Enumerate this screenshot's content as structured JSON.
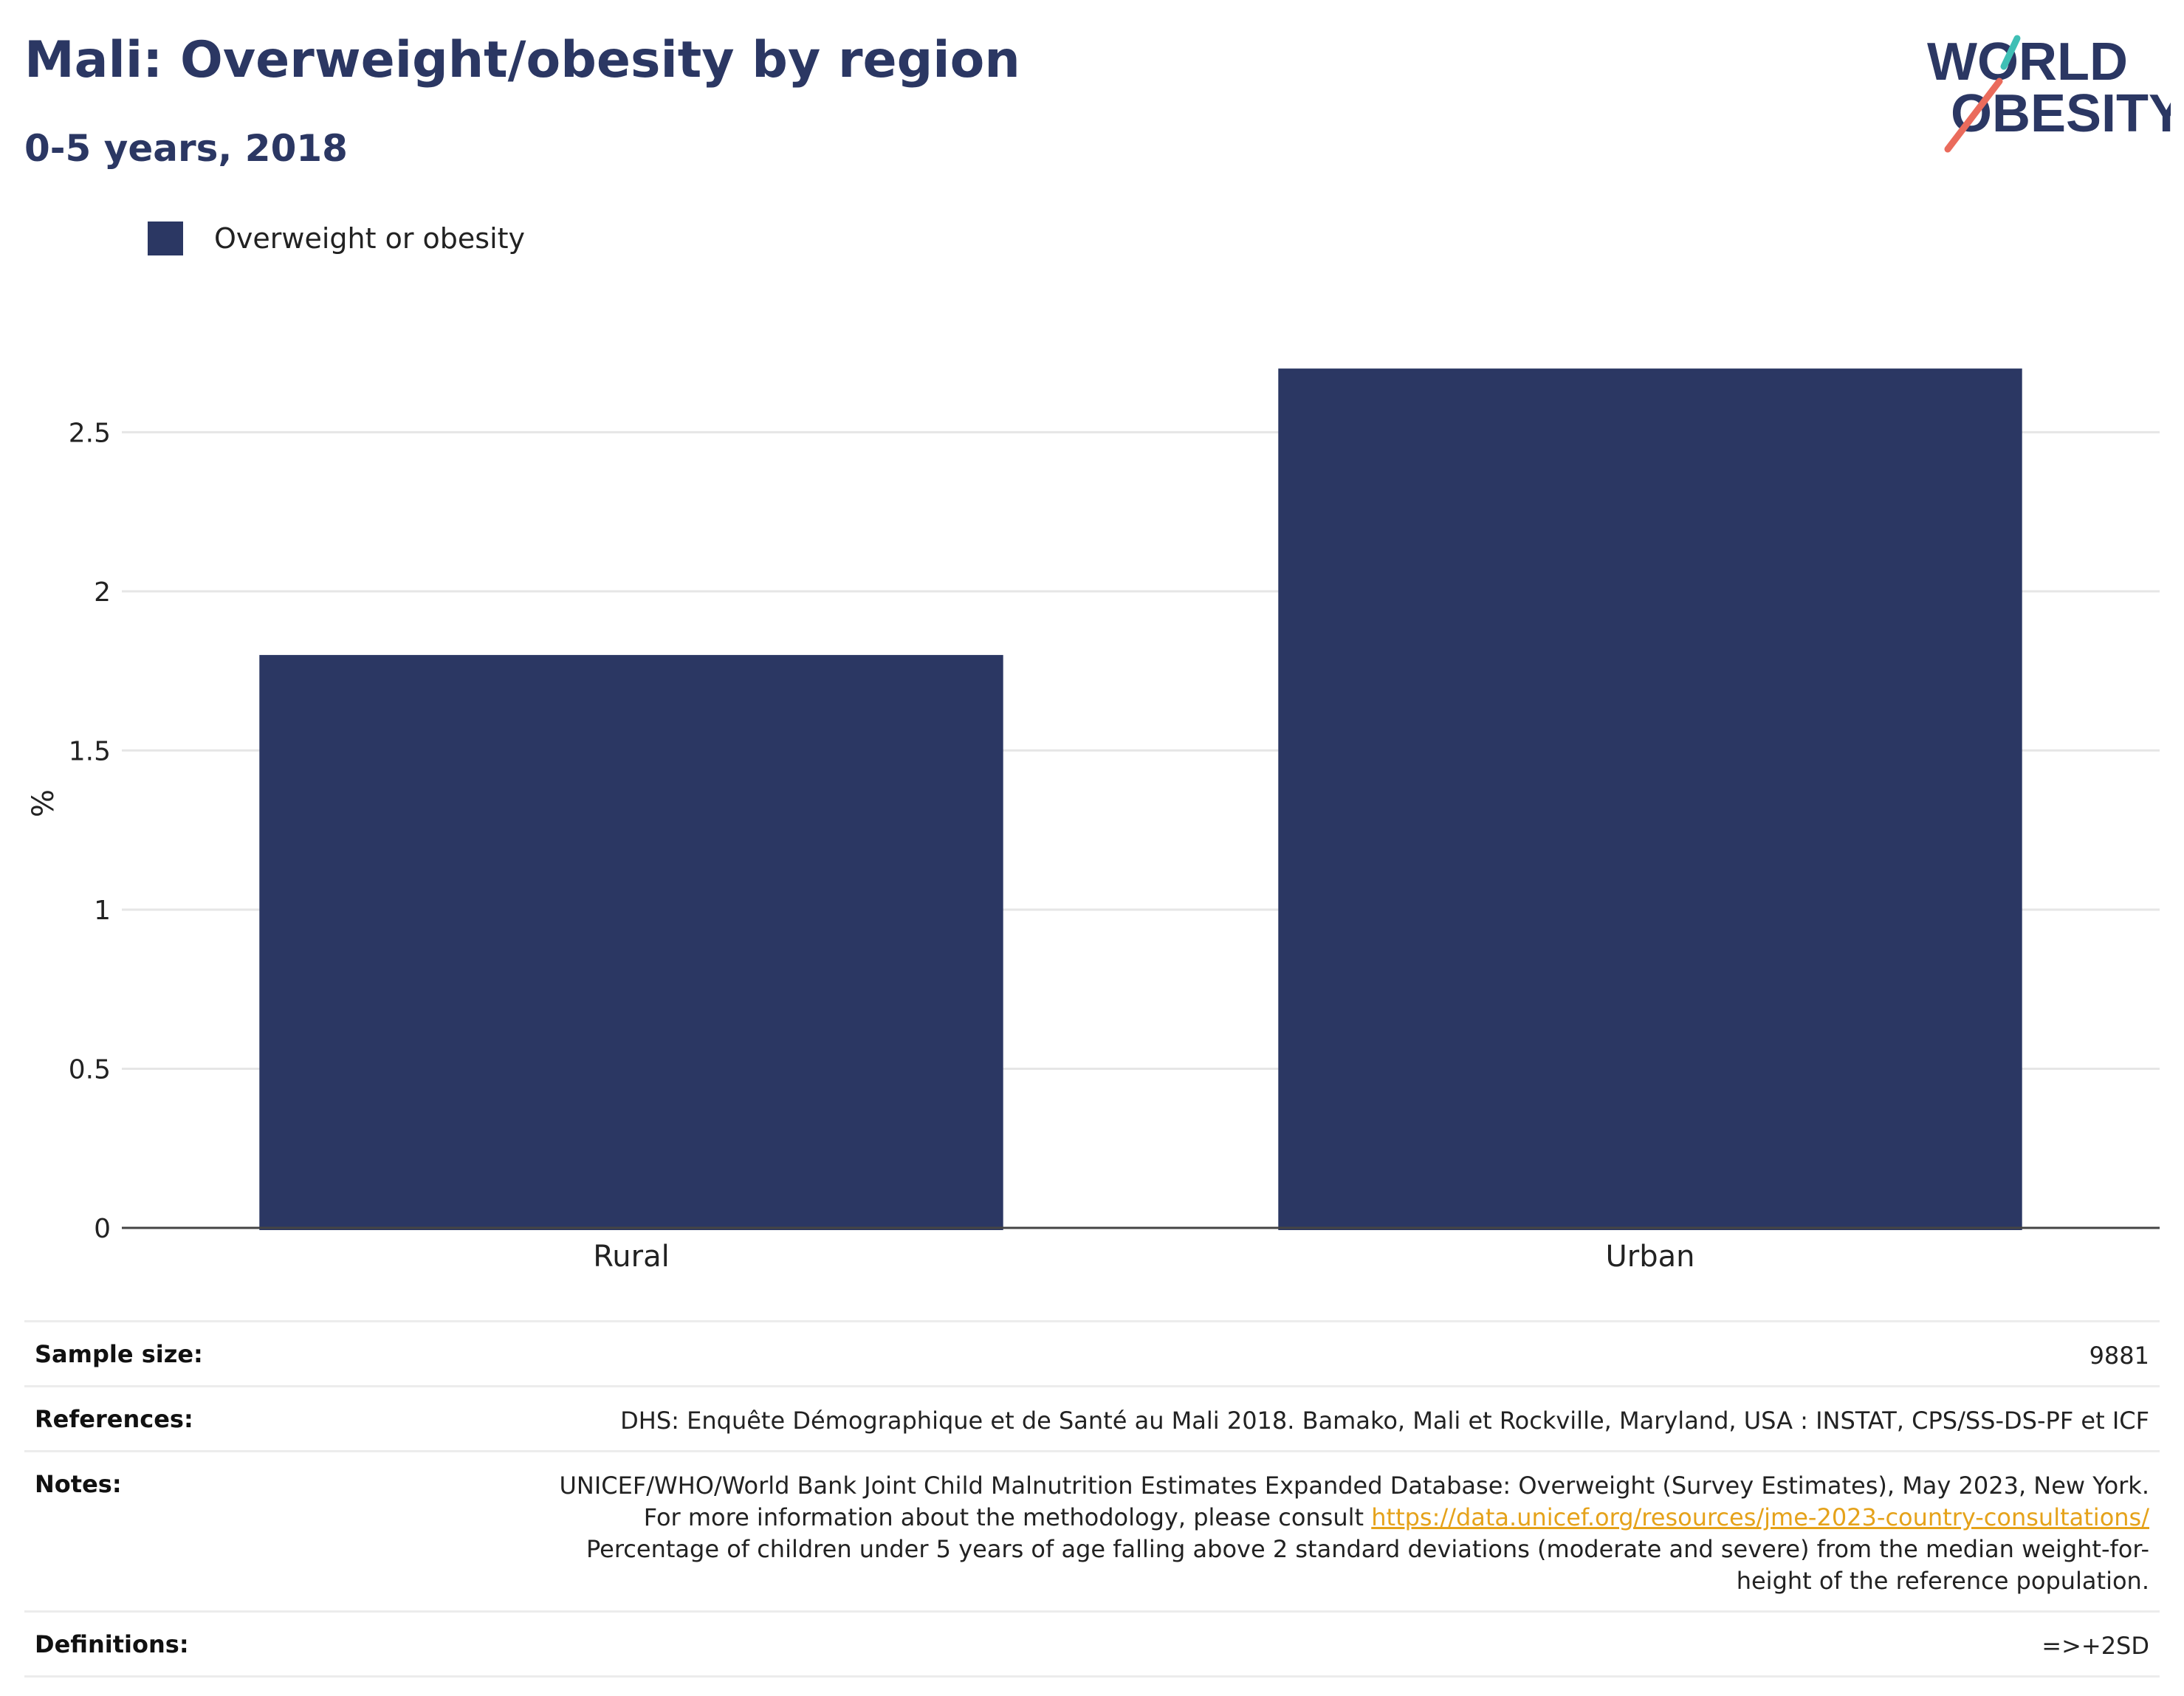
{
  "header": {
    "title": "Mali: Overweight/obesity by region",
    "subtitle": "0-5 years, 2018"
  },
  "logo": {
    "line1": "WORLD",
    "line2": "OBESITY",
    "text_color": "#2b3763",
    "slash_top_color": "#3fbfb5",
    "slash_bottom_color": "#ea6b5c"
  },
  "legend": {
    "items": [
      {
        "label": "Overweight or obesity",
        "color": "#2b3763"
      }
    ]
  },
  "chart_data": {
    "type": "bar",
    "categories": [
      "Rural",
      "Urban"
    ],
    "series": [
      {
        "name": "Overweight or obesity",
        "values": [
          1.8,
          2.7
        ],
        "color": "#2b3763"
      }
    ],
    "ylabel": "%",
    "xlabel": "",
    "ylim": [
      0,
      2.93
    ],
    "yticks": [
      0,
      0.5,
      1,
      1.5,
      2,
      2.5
    ],
    "ytick_labels": [
      "0",
      "0.5",
      "1",
      "1.5",
      "2",
      "2.5"
    ],
    "grid": true,
    "legend_position": "top-left"
  },
  "info": {
    "sample_size": {
      "label": "Sample size:",
      "value": "9881"
    },
    "references": {
      "label": "References:",
      "value": "DHS: Enquête Démographique et de Santé au Mali 2018. Bamako, Mali et Rockville, Maryland, USA : INSTAT, CPS/SS-DS-PF et ICF"
    },
    "notes": {
      "label": "Notes:",
      "text_before_link": "UNICEF/WHO/World Bank Joint Child Malnutrition Estimates Expanded Database: Overweight (Survey Estimates), May 2023, New York. For more information about the methodology, please consult ",
      "link_text": "https://data.unicef.org/resources/jme-2023-country-consultations/",
      "text_after_link": "Percentage of children under 5 years of age falling above 2 standard deviations (moderate and severe) from the median weight-for-height of the reference population."
    },
    "definitions": {
      "label": "Definitions:",
      "value": "=>+2SD"
    }
  }
}
